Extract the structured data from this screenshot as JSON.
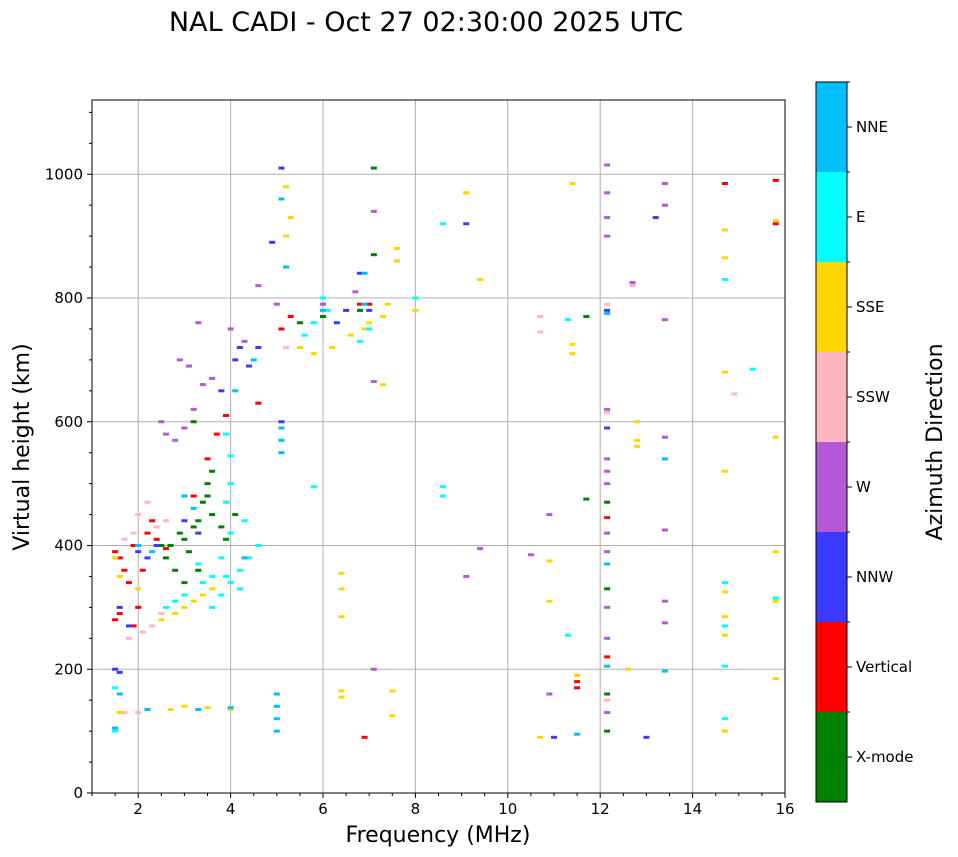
{
  "chart_data": {
    "type": "scatter",
    "title": "NAL CADI - Oct 27 02:30:00 2025 UTC",
    "xlabel": "Frequency (MHz)",
    "ylabel": "Virtual height (km)",
    "xlim": [
      1,
      16
    ],
    "ylim": [
      0,
      1120
    ],
    "xticks": [
      2,
      4,
      6,
      8,
      10,
      12,
      14,
      16
    ],
    "yticks": [
      0,
      200,
      400,
      600,
      800,
      1000
    ],
    "grid": true,
    "colorbar": {
      "label": "Azimuth Direction",
      "categories": [
        {
          "name": "X-mode",
          "color": "#008000"
        },
        {
          "name": "Vertical",
          "color": "#ff0000"
        },
        {
          "name": "NNW",
          "color": "#3a3aff"
        },
        {
          "name": "W",
          "color": "#b45ad6"
        },
        {
          "name": "SSW",
          "color": "#ffb6c1"
        },
        {
          "name": "SSE",
          "color": "#ffd700"
        },
        {
          "name": "E",
          "color": "#00ffff"
        },
        {
          "name": "NNE",
          "color": "#00bfff"
        }
      ]
    },
    "series": [
      {
        "name": "X-mode",
        "points": [
          [
            2.7,
            400
          ],
          [
            2.9,
            420
          ],
          [
            3.0,
            410
          ],
          [
            3.1,
            390
          ],
          [
            3.2,
            430
          ],
          [
            3.3,
            440
          ],
          [
            3.4,
            470
          ],
          [
            3.5,
            480
          ],
          [
            3.6,
            450
          ],
          [
            3.0,
            340
          ],
          [
            2.8,
            360
          ],
          [
            3.3,
            360
          ],
          [
            3.8,
            430
          ],
          [
            4.1,
            450
          ],
          [
            3.6,
            520
          ],
          [
            3.5,
            500
          ],
          [
            3.2,
            600
          ],
          [
            2.5,
            400
          ],
          [
            5.5,
            760
          ],
          [
            6.0,
            770
          ],
          [
            6.8,
            780
          ],
          [
            7.1,
            870
          ],
          [
            7.1,
            1010
          ],
          [
            11.7,
            475
          ],
          [
            11.7,
            770
          ],
          [
            12.15,
            330
          ],
          [
            12.15,
            160
          ],
          [
            12.15,
            100
          ],
          [
            12.15,
            470
          ],
          [
            3.9,
            410
          ],
          [
            2.6,
            380
          ]
        ]
      },
      {
        "name": "Vertical",
        "points": [
          [
            1.5,
            390
          ],
          [
            1.6,
            380
          ],
          [
            1.7,
            360
          ],
          [
            1.9,
            400
          ],
          [
            2.2,
            420
          ],
          [
            2.4,
            410
          ],
          [
            2.6,
            395
          ],
          [
            2.1,
            360
          ],
          [
            1.8,
            340
          ],
          [
            1.6,
            290
          ],
          [
            1.5,
            280
          ],
          [
            2.3,
            440
          ],
          [
            3.5,
            540
          ],
          [
            3.2,
            480
          ],
          [
            3.7,
            580
          ],
          [
            5.1,
            750
          ],
          [
            5.3,
            770
          ],
          [
            6.8,
            790
          ],
          [
            7.0,
            790
          ],
          [
            12.15,
            445
          ],
          [
            12.15,
            220
          ],
          [
            11.5,
            180
          ],
          [
            11.5,
            170
          ],
          [
            15.8,
            990
          ],
          [
            15.8,
            920
          ],
          [
            14.7,
            985
          ],
          [
            6.9,
            90
          ],
          [
            2.0,
            300
          ],
          [
            1.9,
            270
          ],
          [
            3.9,
            610
          ],
          [
            4.6,
            630
          ]
        ]
      },
      {
        "name": "NNW",
        "points": [
          [
            1.6,
            300
          ],
          [
            1.8,
            270
          ],
          [
            2.0,
            390
          ],
          [
            2.2,
            380
          ],
          [
            2.4,
            400
          ],
          [
            3.0,
            440
          ],
          [
            3.3,
            420
          ],
          [
            3.8,
            650
          ],
          [
            4.1,
            700
          ],
          [
            4.2,
            720
          ],
          [
            4.4,
            690
          ],
          [
            5.1,
            1010
          ],
          [
            5.1,
            600
          ],
          [
            6.3,
            760
          ],
          [
            6.5,
            780
          ],
          [
            6.8,
            840
          ],
          [
            7.0,
            780
          ],
          [
            9.1,
            920
          ],
          [
            13.2,
            930
          ],
          [
            12.15,
            780
          ],
          [
            12.15,
            590
          ],
          [
            11.0,
            90
          ],
          [
            13.0,
            90
          ],
          [
            1.5,
            200
          ],
          [
            1.6,
            195
          ],
          [
            4.6,
            720
          ],
          [
            4.9,
            890
          ]
        ]
      },
      {
        "name": "W",
        "points": [
          [
            2.5,
            600
          ],
          [
            2.6,
            580
          ],
          [
            2.8,
            570
          ],
          [
            3.0,
            590
          ],
          [
            3.2,
            620
          ],
          [
            3.4,
            660
          ],
          [
            3.6,
            670
          ],
          [
            2.9,
            700
          ],
          [
            3.1,
            690
          ],
          [
            3.3,
            760
          ],
          [
            4.0,
            750
          ],
          [
            4.3,
            730
          ],
          [
            4.6,
            820
          ],
          [
            5.0,
            790
          ],
          [
            6.0,
            790
          ],
          [
            6.7,
            810
          ],
          [
            7.1,
            940
          ],
          [
            12.15,
            1015
          ],
          [
            12.15,
            970
          ],
          [
            12.15,
            930
          ],
          [
            12.15,
            900
          ],
          [
            12.15,
            620
          ],
          [
            12.15,
            540
          ],
          [
            12.15,
            520
          ],
          [
            12.15,
            500
          ],
          [
            12.15,
            420
          ],
          [
            12.15,
            390
          ],
          [
            12.15,
            300
          ],
          [
            12.15,
            250
          ],
          [
            12.15,
            130
          ],
          [
            13.4,
            985
          ],
          [
            13.4,
            950
          ],
          [
            13.4,
            765
          ],
          [
            13.4,
            575
          ],
          [
            13.4,
            425
          ],
          [
            13.4,
            310
          ],
          [
            13.4,
            275
          ],
          [
            12.7,
            825
          ],
          [
            10.5,
            385
          ],
          [
            9.4,
            395
          ],
          [
            9.1,
            350
          ],
          [
            10.9,
            160
          ],
          [
            7.1,
            200
          ],
          [
            10.9,
            450
          ],
          [
            7.1,
            665
          ]
        ]
      },
      {
        "name": "SSW",
        "points": [
          [
            1.7,
            410
          ],
          [
            1.9,
            420
          ],
          [
            2.0,
            450
          ],
          [
            2.2,
            470
          ],
          [
            2.4,
            430
          ],
          [
            2.6,
            440
          ],
          [
            2.3,
            270
          ],
          [
            2.1,
            260
          ],
          [
            1.8,
            250
          ],
          [
            2.5,
            290
          ],
          [
            5.2,
            720
          ],
          [
            5.5,
            720
          ],
          [
            10.7,
            770
          ],
          [
            10.7,
            745
          ],
          [
            12.15,
            615
          ],
          [
            12.15,
            790
          ],
          [
            12.15,
            150
          ],
          [
            12.7,
            820
          ],
          [
            14.9,
            645
          ],
          [
            9.1,
            970
          ],
          [
            1.7,
            130
          ],
          [
            2.0,
            130
          ]
        ]
      },
      {
        "name": "SSE",
        "points": [
          [
            1.6,
            130
          ],
          [
            2.7,
            135
          ],
          [
            3.0,
            140
          ],
          [
            3.3,
            135
          ],
          [
            3.5,
            138
          ],
          [
            4.0,
            135
          ],
          [
            2.5,
            280
          ],
          [
            2.8,
            290
          ],
          [
            3.0,
            300
          ],
          [
            3.2,
            310
          ],
          [
            3.4,
            320
          ],
          [
            3.6,
            330
          ],
          [
            5.2,
            900
          ],
          [
            5.2,
            980
          ],
          [
            5.3,
            930
          ],
          [
            5.5,
            720
          ],
          [
            5.8,
            710
          ],
          [
            6.2,
            720
          ],
          [
            6.6,
            740
          ],
          [
            6.9,
            750
          ],
          [
            7.0,
            760
          ],
          [
            7.3,
            770
          ],
          [
            7.4,
            790
          ],
          [
            7.6,
            880
          ],
          [
            7.6,
            860
          ],
          [
            8.0,
            780
          ],
          [
            7.3,
            660
          ],
          [
            9.1,
            970
          ],
          [
            9.4,
            830
          ],
          [
            11.4,
            985
          ],
          [
            11.4,
            725
          ],
          [
            11.4,
            710
          ],
          [
            11.5,
            190
          ],
          [
            12.8,
            600
          ],
          [
            12.8,
            570
          ],
          [
            12.8,
            560
          ],
          [
            12.6,
            200
          ],
          [
            14.7,
            910
          ],
          [
            14.7,
            865
          ],
          [
            14.7,
            680
          ],
          [
            14.7,
            520
          ],
          [
            14.7,
            325
          ],
          [
            14.7,
            285
          ],
          [
            14.7,
            255
          ],
          [
            14.7,
            100
          ],
          [
            15.8,
            925
          ],
          [
            15.8,
            575
          ],
          [
            15.8,
            390
          ],
          [
            15.8,
            310
          ],
          [
            15.8,
            185
          ],
          [
            6.4,
            355
          ],
          [
            6.4,
            330
          ],
          [
            6.4,
            285
          ],
          [
            6.4,
            165
          ],
          [
            6.4,
            155
          ],
          [
            7.5,
            165
          ],
          [
            7.5,
            125
          ],
          [
            10.7,
            90
          ],
          [
            10.9,
            375
          ],
          [
            10.9,
            310
          ],
          [
            1.5,
            380
          ],
          [
            1.6,
            350
          ],
          [
            2.0,
            330
          ]
        ]
      },
      {
        "name": "E",
        "points": [
          [
            3.6,
            300
          ],
          [
            3.8,
            320
          ],
          [
            4.0,
            340
          ],
          [
            4.2,
            360
          ],
          [
            4.4,
            380
          ],
          [
            4.6,
            400
          ],
          [
            4.0,
            420
          ],
          [
            3.8,
            380
          ],
          [
            3.9,
            350
          ],
          [
            4.2,
            330
          ],
          [
            3.6,
            350
          ],
          [
            3.4,
            340
          ],
          [
            3.3,
            370
          ],
          [
            3.0,
            320
          ],
          [
            2.8,
            310
          ],
          [
            2.6,
            300
          ],
          [
            3.9,
            470
          ],
          [
            4.3,
            440
          ],
          [
            4.0,
            500
          ],
          [
            5.6,
            740
          ],
          [
            5.8,
            760
          ],
          [
            6.0,
            800
          ],
          [
            6.1,
            780
          ],
          [
            6.8,
            730
          ],
          [
            7.0,
            750
          ],
          [
            8.0,
            800
          ],
          [
            8.6,
            920
          ],
          [
            8.6,
            495
          ],
          [
            8.6,
            480
          ],
          [
            11.3,
            765
          ],
          [
            11.3,
            255
          ],
          [
            14.7,
            340
          ],
          [
            14.7,
            270
          ],
          [
            14.7,
            205
          ],
          [
            14.7,
            120
          ],
          [
            14.7,
            830
          ],
          [
            15.3,
            685
          ],
          [
            15.8,
            315
          ],
          [
            1.5,
            170
          ],
          [
            1.5,
            100
          ],
          [
            4.0,
            545
          ],
          [
            3.9,
            580
          ],
          [
            5.8,
            495
          ]
        ]
      },
      {
        "name": "NNE",
        "points": [
          [
            1.6,
            160
          ],
          [
            1.5,
            105
          ],
          [
            2.2,
            135
          ],
          [
            3.3,
            135
          ],
          [
            4.0,
            138
          ],
          [
            5.0,
            100
          ],
          [
            5.0,
            120
          ],
          [
            5.0,
            140
          ],
          [
            5.0,
            160
          ],
          [
            5.1,
            550
          ],
          [
            5.1,
            570
          ],
          [
            5.1,
            590
          ],
          [
            5.1,
            960
          ],
          [
            5.2,
            850
          ],
          [
            6.0,
            780
          ],
          [
            6.9,
            840
          ],
          [
            11.5,
            95
          ],
          [
            12.15,
            205
          ],
          [
            13.4,
            540
          ],
          [
            13.4,
            197
          ],
          [
            12.15,
            370
          ],
          [
            3.2,
            460
          ],
          [
            3.0,
            480
          ],
          [
            2.0,
            400
          ],
          [
            2.3,
            390
          ],
          [
            4.3,
            380
          ],
          [
            4.1,
            650
          ],
          [
            4.5,
            700
          ],
          [
            6.9,
            790
          ],
          [
            12.15,
            775
          ]
        ]
      }
    ]
  }
}
